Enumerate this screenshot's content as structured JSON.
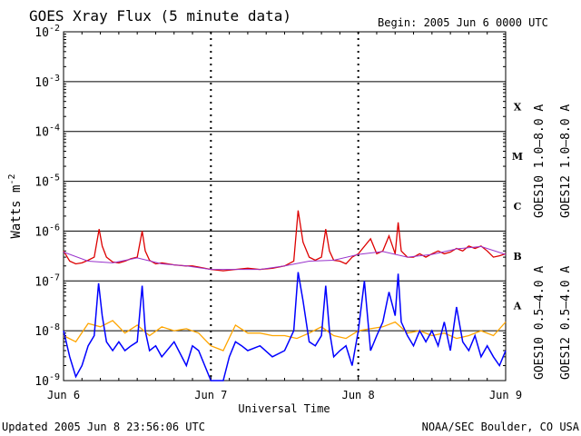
{
  "chart_data": {
    "type": "line",
    "title": "GOES Xray Flux (5 minute data)",
    "begin": "Begin:  2005 Jun 6 0000 UTC",
    "ylabel": "Watts m",
    "ylabel_sup": "-2",
    "xlabel": "Universal Time",
    "y_scale": "log",
    "ylim": [
      1e-09,
      0.01
    ],
    "y_ticks": [
      {
        "value": 0.01,
        "base": "10",
        "exp": "-2"
      },
      {
        "value": 0.001,
        "base": "10",
        "exp": "-3"
      },
      {
        "value": 0.0001,
        "base": "10",
        "exp": "-4"
      },
      {
        "value": 1e-05,
        "base": "10",
        "exp": "-5"
      },
      {
        "value": 1e-06,
        "base": "10",
        "exp": "-6"
      },
      {
        "value": 1e-07,
        "base": "10",
        "exp": "-7"
      },
      {
        "value": 1e-08,
        "base": "10",
        "exp": "-8"
      },
      {
        "value": 1e-09,
        "base": "10",
        "exp": "-9"
      }
    ],
    "xlim": [
      0,
      72
    ],
    "x_unit": "hours since 2005 Jun 6 0000 UTC",
    "x_ticks": [
      {
        "value": 0,
        "label": "Jun 6"
      },
      {
        "value": 24,
        "label": "Jun 7"
      },
      {
        "value": 48,
        "label": "Jun 8"
      },
      {
        "value": 72,
        "label": "Jun 9"
      }
    ],
    "flare_classes": [
      {
        "label": "X",
        "value": 0.0001
      },
      {
        "label": "M",
        "value": 1e-05
      },
      {
        "label": "C",
        "value": 1e-06
      },
      {
        "label": "B",
        "value": 1e-07
      },
      {
        "label": "A",
        "value": 1e-08
      }
    ],
    "legend": [
      {
        "text": "GOES10 1.0–8.0 A",
        "color": "#9933cc"
      },
      {
        "text": "GOES12 1.0–8.0 A",
        "color": "#dd0000"
      },
      {
        "text": "GOES10 0.5–4.0 A",
        "color": "#ffa500"
      },
      {
        "text": "GOES12 0.5–4.0 A",
        "color": "#0000ff"
      }
    ],
    "series": [
      {
        "name": "GOES12 1.0–8.0 A",
        "color": "#dd0000",
        "x": [
          0,
          1,
          2,
          3,
          4,
          5,
          5.8,
          6.3,
          7,
          8,
          9,
          10,
          11,
          12,
          12.8,
          13.3,
          14,
          15,
          16,
          18,
          20,
          21,
          22,
          24,
          26,
          28,
          30,
          32,
          34,
          36,
          37.5,
          38.2,
          39,
          40,
          41,
          42,
          42.7,
          43.3,
          44,
          45,
          46,
          47,
          48,
          50,
          51,
          52,
          53,
          54,
          54.5,
          55,
          56,
          57,
          58,
          59,
          60,
          61,
          62,
          63,
          64,
          65,
          66,
          67,
          68,
          69,
          70,
          71,
          72
        ],
        "y": [
          4e-07,
          2.5e-07,
          2.2e-07,
          2.3e-07,
          2.6e-07,
          3e-07,
          1.1e-06,
          5e-07,
          3e-07,
          2.4e-07,
          2.3e-07,
          2.5e-07,
          2.8e-07,
          3e-07,
          1e-06,
          4e-07,
          2.6e-07,
          2.2e-07,
          2.3e-07,
          2.1e-07,
          2e-07,
          2e-07,
          1.9e-07,
          1.7e-07,
          1.6e-07,
          1.7e-07,
          1.8e-07,
          1.7e-07,
          1.8e-07,
          2e-07,
          2.5e-07,
          2.6e-06,
          6e-07,
          3e-07,
          2.6e-07,
          3e-07,
          1.1e-06,
          4e-07,
          2.6e-07,
          2.5e-07,
          2.2e-07,
          3e-07,
          3.5e-07,
          7e-07,
          3.5e-07,
          4e-07,
          8e-07,
          3.5e-07,
          1.5e-06,
          4e-07,
          3e-07,
          3e-07,
          3.5e-07,
          3e-07,
          3.5e-07,
          4e-07,
          3.5e-07,
          3.8e-07,
          4.5e-07,
          4e-07,
          5e-07,
          4.5e-07,
          5e-07,
          4e-07,
          3e-07,
          3.2e-07,
          3.5e-07
        ]
      },
      {
        "name": "GOES10 1.0–8.0 A",
        "color": "#9933cc",
        "x": [
          0,
          4,
          8,
          12,
          16,
          20,
          24,
          28,
          32,
          36,
          40,
          44,
          48,
          52,
          56,
          60,
          64,
          68,
          72
        ],
        "y": [
          3.8e-07,
          2.5e-07,
          2.3e-07,
          2.9e-07,
          2.2e-07,
          2e-07,
          1.7e-07,
          1.7e-07,
          1.7e-07,
          2e-07,
          2.5e-07,
          2.6e-07,
          3.4e-07,
          3.9e-07,
          3e-07,
          3.4e-07,
          4.4e-07,
          4.9e-07,
          3.4e-07
        ]
      },
      {
        "name": "GOES10 0.5–4.0 A",
        "color": "#ffa500",
        "x": [
          0,
          2,
          4,
          6,
          8,
          10,
          12,
          14,
          16,
          18,
          20,
          22,
          24,
          26,
          28,
          30,
          32,
          34,
          36,
          38,
          40,
          42,
          44,
          46,
          48,
          50,
          52,
          54,
          56,
          58,
          60,
          62,
          64,
          66,
          68,
          70,
          72
        ],
        "y": [
          8e-09,
          6e-09,
          1.4e-08,
          1.2e-08,
          1.6e-08,
          9e-09,
          1.3e-08,
          8e-09,
          1.2e-08,
          1e-08,
          1.1e-08,
          9e-09,
          5e-09,
          4e-09,
          1.3e-08,
          9e-09,
          9e-09,
          8e-09,
          8e-09,
          7e-09,
          9e-09,
          1.2e-08,
          8e-09,
          7e-09,
          1e-08,
          1.1e-08,
          1.2e-08,
          1.5e-08,
          9e-09,
          1e-08,
          8e-09,
          9e-09,
          7e-09,
          8e-09,
          1e-08,
          8e-09,
          1.5e-08
        ]
      },
      {
        "name": "GOES12 0.5–4.0 A",
        "color": "#0000ff",
        "x": [
          0,
          1,
          2,
          3,
          4,
          5,
          5.7,
          6.3,
          7,
          8,
          9,
          10,
          11,
          12,
          12.8,
          13.3,
          14,
          15,
          16,
          18,
          20,
          21,
          22,
          24,
          25,
          26,
          27,
          28,
          29,
          30,
          32,
          34,
          36,
          37.5,
          38.2,
          39,
          40,
          41,
          42,
          42.7,
          43.3,
          44,
          45,
          46,
          47,
          48,
          49,
          50,
          51,
          52,
          53,
          54,
          54.5,
          55,
          56,
          57,
          58,
          59,
          60,
          61,
          62,
          63,
          64,
          65,
          66,
          67,
          68,
          69,
          70,
          71,
          72
        ],
        "y": [
          1e-08,
          3e-09,
          1.2e-09,
          2e-09,
          5e-09,
          8e-09,
          9e-08,
          2e-08,
          6e-09,
          4e-09,
          6e-09,
          4e-09,
          5e-09,
          6e-09,
          8e-08,
          1e-08,
          4e-09,
          5e-09,
          3e-09,
          6e-09,
          2e-09,
          5e-09,
          4e-09,
          1e-09,
          1e-09,
          9e-10,
          3e-09,
          6e-09,
          5e-09,
          4e-09,
          5e-09,
          3e-09,
          4e-09,
          1e-08,
          1.5e-07,
          4e-08,
          6e-09,
          5e-09,
          8e-09,
          8e-08,
          1e-08,
          3e-09,
          4e-09,
          5e-09,
          2e-09,
          1e-08,
          1e-07,
          4e-09,
          8e-09,
          1.5e-08,
          6e-08,
          2e-08,
          1.4e-07,
          1.5e-08,
          8e-09,
          5e-09,
          1e-08,
          6e-09,
          1e-08,
          5e-09,
          1.5e-08,
          4e-09,
          3e-08,
          6e-09,
          4e-09,
          8e-09,
          3e-09,
          5e-09,
          3e-09,
          2e-09,
          4e-09
        ]
      }
    ]
  },
  "footer": {
    "updated": "Updated 2005 Jun  8 23:56:06 UTC",
    "credit": "NOAA/SEC Boulder, CO USA"
  }
}
